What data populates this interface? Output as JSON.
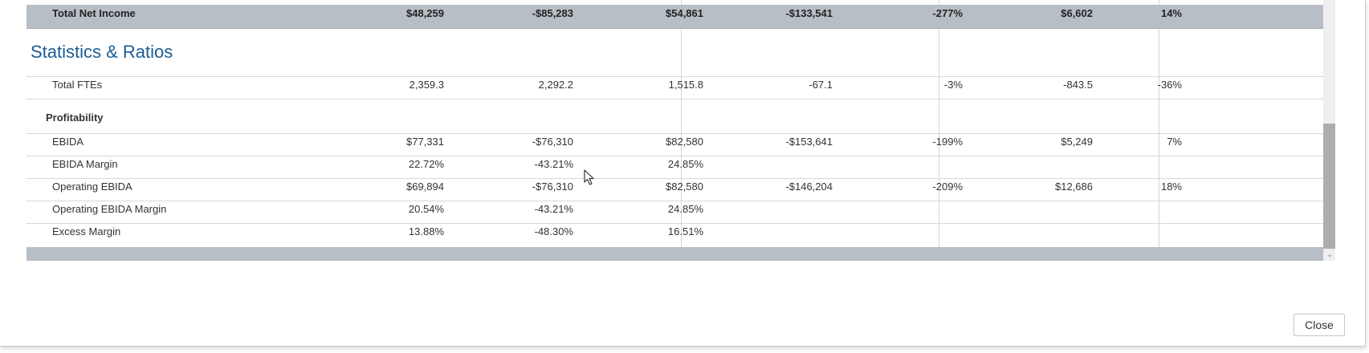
{
  "total_row": {
    "label": "Total Net Income",
    "values": [
      "$48,259",
      "-$85,283",
      "$54,861",
      "-$133,541",
      "-277%",
      "$6,602",
      "14%"
    ]
  },
  "section_title": "Statistics & Ratios",
  "fte_row": {
    "label": "Total FTEs",
    "values": [
      "2,359.3",
      "2,292.2",
      "1,515.8",
      "-67.1",
      "-3%",
      "-843.5",
      "-36%"
    ]
  },
  "group_label": "Profitability",
  "rows": [
    {
      "label": "EBIDA",
      "values": [
        "$77,331",
        "-$76,310",
        "$82,580",
        "-$153,641",
        "-199%",
        "$5,249",
        "7%"
      ]
    },
    {
      "label": "EBIDA Margin",
      "values": [
        "22.72%",
        "-43.21%",
        "24.85%",
        "",
        "",
        "",
        ""
      ]
    },
    {
      "label": "Operating EBIDA",
      "values": [
        "$69,894",
        "-$76,310",
        "$82,580",
        "-$146,204",
        "-209%",
        "$12,686",
        "18%"
      ]
    },
    {
      "label": "Operating EBIDA Margin",
      "values": [
        "20.54%",
        "-43.21%",
        "24.85%",
        "",
        "",
        "",
        ""
      ]
    },
    {
      "label": "Excess Margin",
      "values": [
        "13.88%",
        "-48.30%",
        "16.51%",
        "",
        "",
        "",
        ""
      ]
    }
  ],
  "close_label": "Close"
}
